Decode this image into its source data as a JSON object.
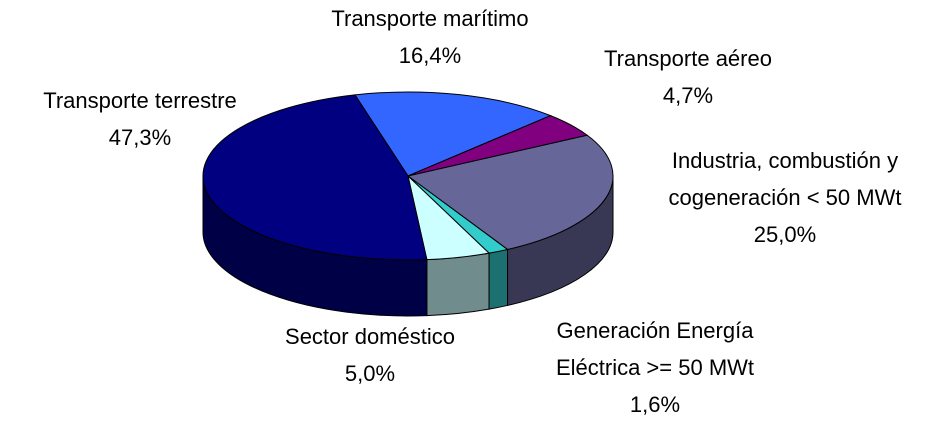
{
  "chart_data": {
    "type": "pie3d",
    "categories": [
      "Transporte marítimo",
      "Transporte aéreo",
      "Industria, combustión y cogeneración < 50 MWt",
      "Generación Energía Eléctrica >= 50 MWt",
      "Sector doméstico",
      "Transporte terrestre"
    ],
    "values": [
      16.4,
      4.7,
      25.0,
      1.6,
      5.0,
      47.3
    ],
    "value_labels": [
      "16,4%",
      "4,7%",
      "25,0%",
      "1,6%",
      "5,0%",
      "47,3%"
    ],
    "colors": [
      "#3366ff",
      "#800080",
      "#666699",
      "#33cccc",
      "#ccffff",
      "#000080"
    ]
  }
}
